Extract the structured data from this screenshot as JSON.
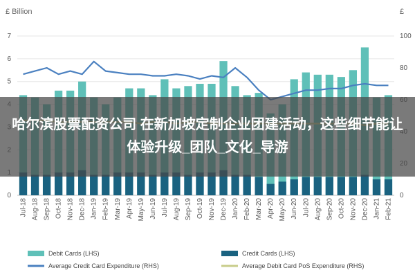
{
  "chart_data": {
    "type": "bar",
    "left_axis_unit": "£ Billion",
    "right_axis_unit": "£",
    "y_left": {
      "min": 0,
      "max": 7,
      "ticks": [
        0,
        1,
        2,
        3,
        4,
        5,
        6,
        7
      ]
    },
    "y_right": {
      "min": 0,
      "max": 100,
      "ticks": [
        0,
        20,
        40,
        60,
        80,
        100
      ]
    },
    "categories": [
      "Jul-18",
      "Aug-18",
      "Sep-18",
      "Oct-18",
      "Nov-18",
      "Dec-18",
      "Jan-19",
      "Feb-19",
      "Mar-19",
      "Apr-19",
      "May-19",
      "Jun-19",
      "Jul-19",
      "Aug-19",
      "Sep-19",
      "Oct-19",
      "Nov-19",
      "Dec-19",
      "Jan-20",
      "Feb-20",
      "Mar-20",
      "Apr-20",
      "May-20",
      "Jun-20",
      "Jul-20",
      "Aug-20",
      "Sep-20",
      "Oct-20",
      "Nov-20",
      "Dec-20",
      "Jan-21",
      "Feb-21"
    ],
    "series": [
      {
        "name": "Debit Cards (LHS)",
        "kind": "bar",
        "axis": "left",
        "color": "#5fc0b8",
        "values": [
          4.4,
          4.3,
          4.0,
          4.6,
          4.6,
          5.0,
          4.3,
          4.0,
          4.3,
          4.7,
          4.7,
          4.4,
          5.1,
          4.7,
          4.8,
          4.9,
          4.9,
          5.9,
          4.8,
          4.4,
          4.5,
          3.6,
          4.0,
          5.1,
          5.4,
          5.3,
          5.3,
          5.2,
          5.5,
          6.5,
          4.3,
          4.4
        ]
      },
      {
        "name": "Credit Cards (LHS)",
        "kind": "bar",
        "axis": "left",
        "color": "#1a6280",
        "values": [
          1.0,
          0.9,
          0.9,
          1.0,
          1.0,
          1.1,
          0.9,
          0.9,
          1.0,
          1.0,
          1.0,
          0.9,
          1.0,
          1.0,
          0.9,
          1.0,
          1.0,
          1.1,
          0.9,
          0.9,
          0.8,
          0.5,
          0.6,
          0.7,
          0.8,
          0.8,
          0.8,
          0.8,
          0.8,
          0.9,
          0.7,
          0.7
        ]
      },
      {
        "name": "Average Credit Card Expenditure (RHS)",
        "kind": "line",
        "axis": "right",
        "color": "#4a80c0",
        "values": [
          76,
          78,
          80,
          76,
          78,
          76,
          84,
          78,
          77,
          76,
          76,
          75,
          75,
          76,
          75,
          73,
          75,
          74,
          80,
          74,
          66,
          60,
          62,
          64,
          66,
          66,
          67,
          67,
          69,
          70,
          69,
          69
        ]
      },
      {
        "name": "Average Debit Card PoS Expenditure (RHS)",
        "kind": "line",
        "axis": "right",
        "color": "#c8cc8a",
        "values": [
          47,
          47,
          47,
          46,
          46,
          46,
          46,
          46,
          46,
          46,
          45,
          46,
          46,
          45,
          46,
          46,
          45,
          45,
          45,
          45,
          45,
          45,
          45,
          45,
          45,
          45,
          45,
          45,
          45,
          44,
          45,
          45
        ]
      }
    ]
  },
  "overlay": {
    "title": "哈尔滨股票配资公司 在新加坡定制企业团建活动，这些细节能让体验升级_团队_文化_导游"
  }
}
